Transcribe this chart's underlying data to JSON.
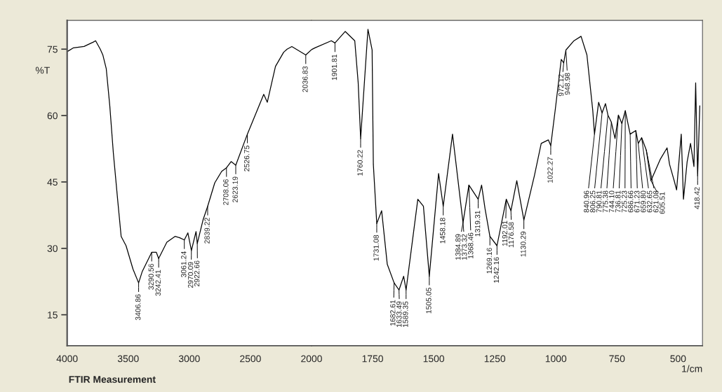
{
  "chart_data": [
    {
      "type": "line",
      "ylabel": "%T",
      "xlim": [
        4000,
        2000
      ],
      "ylim": [
        8,
        81.5
      ],
      "xticks": [
        4000,
        3500,
        3000,
        2500,
        2000
      ],
      "yticks": [
        15,
        30,
        45,
        60,
        75
      ],
      "grid": false,
      "marker": "none",
      "line_style": "solid",
      "series": [
        {
          "color": "#000000",
          "x": [
            3996,
            3948,
            3862,
            3786,
            3767,
            3729,
            3708,
            3680,
            3651,
            3622,
            3587,
            3558,
            3518,
            3461,
            3415,
            3385,
            3308,
            3270,
            3251,
            3184,
            3117,
            3079,
            3041,
            3012,
            2983,
            2945,
            2935,
            2888,
            2850,
            2792,
            2735,
            2696,
            2658,
            2620,
            2525,
            2391,
            2362,
            2295,
            2228,
            2200,
            2161,
            2047,
            2000
          ],
          "values": [
            74.5,
            75.3,
            75.6,
            76.6,
            76.9,
            75.0,
            73.7,
            70.6,
            62.2,
            51.6,
            41.1,
            32.7,
            30.6,
            25.3,
            22.2,
            24.8,
            29.1,
            29.1,
            27.7,
            31.4,
            32.7,
            32.4,
            31.9,
            33.5,
            29.5,
            33.8,
            31.1,
            36.4,
            39.5,
            44.8,
            47.4,
            48.2,
            49.6,
            48.8,
            55.8,
            64.8,
            63.0,
            71.1,
            74.3,
            75.0,
            75.6,
            73.7,
            74.9
          ]
        }
      ],
      "annotations": [
        "FTIR Measurement",
        {
          "text": "3406.86",
          "x": 3415,
          "y": 22.2
        },
        {
          "text": "3290.56",
          "x": 3308,
          "y": 29.1
        },
        {
          "text": "3242.41",
          "x": 3251,
          "y": 27.7
        },
        {
          "text": "3061.24",
          "x": 3041,
          "y": 31.9
        },
        {
          "text": "2970.09",
          "x": 2983,
          "y": 29.5
        },
        {
          "text": "2922.66",
          "x": 2935,
          "y": 31.1
        },
        {
          "text": "2839.22",
          "x": 2850,
          "y": 39.5
        },
        {
          "text": "2708.06",
          "x": 2696,
          "y": 48.2
        },
        {
          "text": "2623.19",
          "x": 2620,
          "y": 48.8
        },
        {
          "text": "2526.75",
          "x": 2525,
          "y": 55.8
        },
        {
          "text": "2036.83",
          "x": 2047,
          "y": 73.7
        }
      ]
    },
    {
      "type": "line",
      "xlabel": "1/cm",
      "xlim": [
        2000,
        400
      ],
      "ylim": [
        8,
        81.5
      ],
      "xticks": [
        1750,
        1500,
        1250,
        1000,
        750,
        500
      ],
      "yticks": [
        15,
        30,
        45,
        60,
        75
      ],
      "tick_labels": "x",
      "grid": false,
      "marker": "none",
      "line_style": "solid",
      "series": [
        {
          "color": "#000000",
          "x": [
            2000,
            1986,
            1919,
            1904,
            1862,
            1823,
            1809,
            1799,
            1769,
            1752,
            1747,
            1733,
            1713,
            1690,
            1662,
            1642,
            1623,
            1613,
            1565,
            1542,
            1518,
            1480,
            1461,
            1423,
            1380,
            1356,
            1318,
            1304,
            1290,
            1270,
            1241,
            1203,
            1184,
            1160,
            1131,
            1088,
            1060,
            1031,
            1021,
            1002,
            978,
            968,
            959,
            926,
            897,
            873,
            849,
            842,
            825,
            811,
            797,
            787,
            773,
            758,
            744,
            730,
            716,
            696,
            673,
            663,
            649,
            630,
            611,
            573,
            545,
            535,
            516,
            506,
            487,
            478,
            463,
            449,
            435,
            428,
            420,
            411
          ],
          "values": [
            74.9,
            75.3,
            76.9,
            76.4,
            79.0,
            76.9,
            67.4,
            54.8,
            79.5,
            74.8,
            49.0,
            35.6,
            38.5,
            26.4,
            22.2,
            20.6,
            23.7,
            20.6,
            41.1,
            39.5,
            23.7,
            46.9,
            39.5,
            55.8,
            35.8,
            44.3,
            41.1,
            44.3,
            39.0,
            32.7,
            30.6,
            41.1,
            38.5,
            45.3,
            36.4,
            46.4,
            53.7,
            54.5,
            53.2,
            61.6,
            72.7,
            71.9,
            74.8,
            76.9,
            77.9,
            73.7,
            61.1,
            55.8,
            63.0,
            60.6,
            62.7,
            60.1,
            58.5,
            54.8,
            60.1,
            58.2,
            61.1,
            55.8,
            56.6,
            53.7,
            55.0,
            52.2,
            45.3,
            50.1,
            52.7,
            49.0,
            45.3,
            43.2,
            55.8,
            41.1,
            49.5,
            53.7,
            48.5,
            67.4,
            46.4,
            62.2
          ]
        }
      ],
      "annotations": [
        {
          "text": "1901.81",
          "x": 1904,
          "y": 76.4
        },
        {
          "text": "1760.22",
          "x": 1799,
          "y": 54.8
        },
        {
          "text": "1731.08",
          "x": 1733,
          "y": 35.6
        },
        {
          "text": "1682.61",
          "x": 1662,
          "y": 22.2
        },
        {
          "text": "1633.49",
          "x": 1642,
          "y": 20.6
        },
        {
          "text": "1589.35",
          "x": 1613,
          "y": 20.6
        },
        {
          "text": "1505.05",
          "x": 1518,
          "y": 23.7
        },
        {
          "text": "1458.18",
          "x": 1461,
          "y": 39.5
        },
        {
          "text": "1384.89",
          "x": 1380,
          "y": 35.8
        },
        {
          "text": "1373.32",
          "x": 1380,
          "y": 35.8
        },
        {
          "text": "1368.46",
          "x": 1356,
          "y": 44.3
        },
        {
          "text": "1319.31",
          "x": 1318,
          "y": 41.1
        },
        {
          "text": "1269.16",
          "x": 1270,
          "y": 32.7
        },
        {
          "text": "1242.16",
          "x": 1241,
          "y": 30.6
        },
        {
          "text": "1192.01",
          "x": 1203,
          "y": 41.1
        },
        {
          "text": "1176.58",
          "x": 1184,
          "y": 38.5
        },
        {
          "text": "1130.29",
          "x": 1131,
          "y": 36.4
        },
        {
          "text": "1022.27",
          "x": 1021,
          "y": 53.2
        },
        {
          "text": "972.12",
          "x": 968,
          "y": 71.9
        },
        {
          "text": "948.98",
          "x": 959,
          "y": 74.8
        },
        {
          "text": "840.96",
          "x": 842,
          "y": 55.8
        },
        {
          "text": "806.25",
          "x": 811,
          "y": 60.6
        },
        {
          "text": "790.81",
          "x": 787,
          "y": 60.1
        },
        {
          "text": "775.38",
          "x": 773,
          "y": 58.5
        },
        {
          "text": "744.10",
          "x": 744,
          "y": 60.1
        },
        {
          "text": "736.81",
          "x": 730,
          "y": 58.2
        },
        {
          "text": "725.23",
          "x": 716,
          "y": 61.1
        },
        {
          "text": "686.66",
          "x": 696,
          "y": 55.8
        },
        {
          "text": "671.23",
          "x": 673,
          "y": 56.6
        },
        {
          "text": "659.80",
          "x": 663,
          "y": 53.7
        },
        {
          "text": "632.65",
          "x": 649,
          "y": 55.0
        },
        {
          "text": "621.08",
          "x": 630,
          "y": 52.2
        },
        {
          "text": "605.51",
          "x": 611,
          "y": 45.3
        },
        {
          "text": "418.42",
          "x": 420,
          "y": 46.4
        }
      ]
    }
  ]
}
